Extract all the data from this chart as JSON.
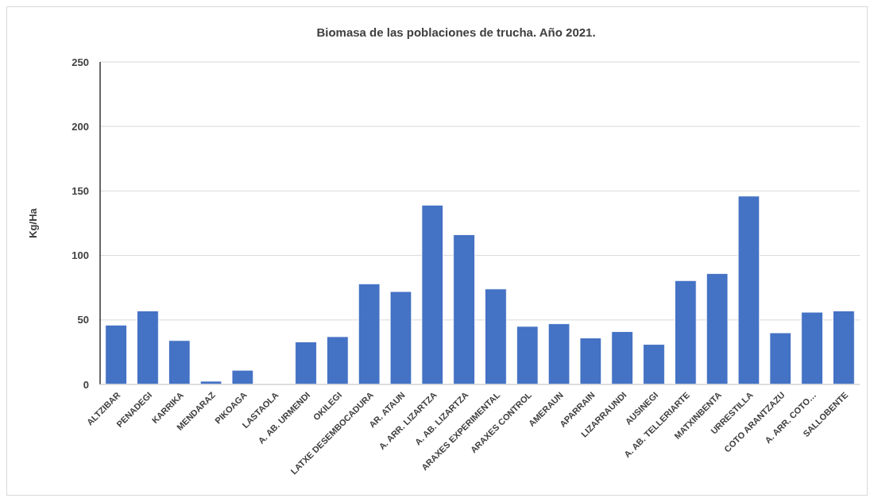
{
  "chart_data": {
    "type": "bar",
    "title": "Biomasa de las poblaciones de trucha. Año 2021.",
    "ylabel": "Kg/Ha",
    "categories": [
      "ALTZIBAR",
      "PENADEGI",
      "KARRIKA",
      "MENDARAZ",
      "PIKOAGA",
      "LASTAOLA",
      "A. AB. URMENDI",
      "OKILEGI",
      "LATXE DESEMBOCADURA",
      "AR. ATAUN",
      "A. ARR. LIZARTZA",
      "A. AB. LIZARTZA",
      "ARAXES EXPERIMENTAL",
      "ARAXES CONTROL",
      "AMERAUN",
      "APARRAIN",
      "LIZARRAUNDI",
      "AUSINEGI",
      "A. AB. TELLERIARTE",
      "MATXINBENTA",
      "URRESTILLA",
      "COTO ARANTZAZU",
      "A. ARR. COTO…",
      "SALLOBENTE"
    ],
    "values": [
      46,
      57,
      34,
      2.5,
      11,
      0,
      33,
      37,
      78,
      72,
      139,
      116,
      74,
      45,
      47,
      36,
      41,
      31,
      80.5,
      86,
      146,
      40,
      56,
      57
    ],
    "color": "#4472c4",
    "ylim": [
      0,
      250
    ],
    "yticks": [
      0,
      50,
      100,
      150,
      200,
      250
    ],
    "grid": "y"
  }
}
